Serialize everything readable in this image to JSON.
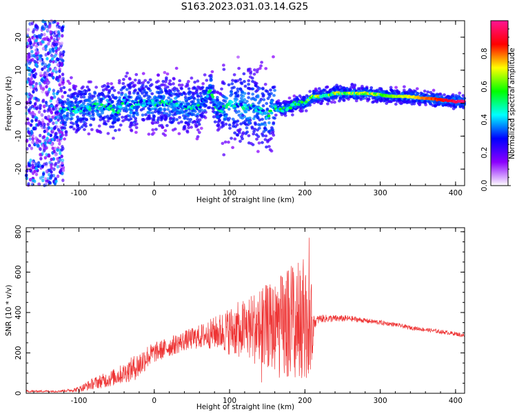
{
  "title": "S163.2023.031.03.14.G25",
  "colors": {
    "snr_line": "#ee3333",
    "frame": "#000000",
    "background": "#ffffff"
  },
  "chart_data": [
    {
      "type": "heatmap",
      "title": "S163.2023.031.03.14.G25",
      "xlabel": "Height of straight line (km)",
      "ylabel": "Frequency (Hz)",
      "xlim": [
        -170,
        412
      ],
      "ylim": [
        -25,
        25
      ],
      "xticks": [
        "-100",
        "0",
        "100",
        "200",
        "300",
        "400"
      ],
      "xtick_values": [
        -100,
        0,
        100,
        200,
        300,
        400
      ],
      "yticks": [
        "-20",
        "-10",
        "0",
        "10",
        "20"
      ],
      "ytick_values": [
        -20,
        -10,
        0,
        10,
        20
      ],
      "colorbar": {
        "label": "Normalized spectral amplitude",
        "range": [
          0,
          1
        ],
        "ticks": [
          "0.0",
          "0.2",
          "0.4",
          "0.6",
          "0.8"
        ],
        "tick_values": [
          0.0,
          0.2,
          0.4,
          0.6,
          0.8
        ],
        "colormap": [
          "#ffffff",
          "#8b00ff",
          "#0000ff",
          "#00ffff",
          "#00ff00",
          "#ffff00",
          "#ff0000",
          "#ff1493"
        ]
      },
      "ridge": {
        "x": [
          -125,
          -100,
          -80,
          -60,
          -50,
          -40,
          -30,
          -20,
          0,
          20,
          40,
          60,
          70,
          75,
          80,
          90,
          100,
          120,
          140,
          150,
          160,
          170,
          180,
          190,
          200,
          210,
          220,
          240,
          260,
          280,
          300,
          320,
          340,
          360,
          380,
          400,
          412
        ],
        "y": [
          -2,
          -2,
          -1,
          -1,
          -3,
          1,
          -1,
          0,
          0,
          0,
          -1,
          -1,
          2,
          5,
          -1,
          -2,
          0,
          -1,
          -2,
          -4,
          -1,
          -2,
          -1,
          0,
          0,
          2,
          2,
          3,
          3,
          3,
          2.5,
          2,
          2,
          1.5,
          1,
          0.5,
          0.5
        ]
      }
    },
    {
      "type": "line",
      "xlabel": "Height of straight line (km)",
      "ylabel": "SNR (10 * v/v)",
      "xlim": [
        -170,
        412
      ],
      "ylim": [
        0,
        820
      ],
      "xticks": [
        "-100",
        "0",
        "100",
        "200",
        "300",
        "400"
      ],
      "xtick_values": [
        -100,
        0,
        100,
        200,
        300,
        400
      ],
      "yticks": [
        "0",
        "200",
        "400",
        "600",
        "800"
      ],
      "ytick_values": [
        0,
        200,
        400,
        600,
        800
      ],
      "series": [
        {
          "color": "#ee3333",
          "x": [
            -170,
            -150,
            -130,
            -110,
            -100,
            -80,
            -60,
            -40,
            -30,
            -20,
            -10,
            0,
            20,
            40,
            60,
            80,
            100,
            120,
            140,
            160,
            170,
            180,
            190,
            200,
            210,
            212,
            220,
            240,
            260,
            280,
            300,
            320,
            340,
            360,
            380,
            400,
            412
          ],
          "y": [
            10,
            10,
            10,
            15,
            20,
            50,
            70,
            100,
            120,
            140,
            180,
            200,
            230,
            260,
            280,
            300,
            310,
            320,
            330,
            330,
            320,
            340,
            350,
            340,
            330,
            350,
            370,
            370,
            370,
            360,
            350,
            340,
            325,
            315,
            305,
            295,
            285
          ],
          "spread": [
            5,
            5,
            5,
            8,
            15,
            30,
            40,
            50,
            60,
            70,
            60,
            50,
            50,
            50,
            60,
            80,
            120,
            150,
            200,
            220,
            280,
            300,
            300,
            280,
            200,
            30,
            20,
            18,
            15,
            12,
            12,
            10,
            10,
            10,
            10,
            10,
            10
          ]
        }
      ]
    }
  ]
}
